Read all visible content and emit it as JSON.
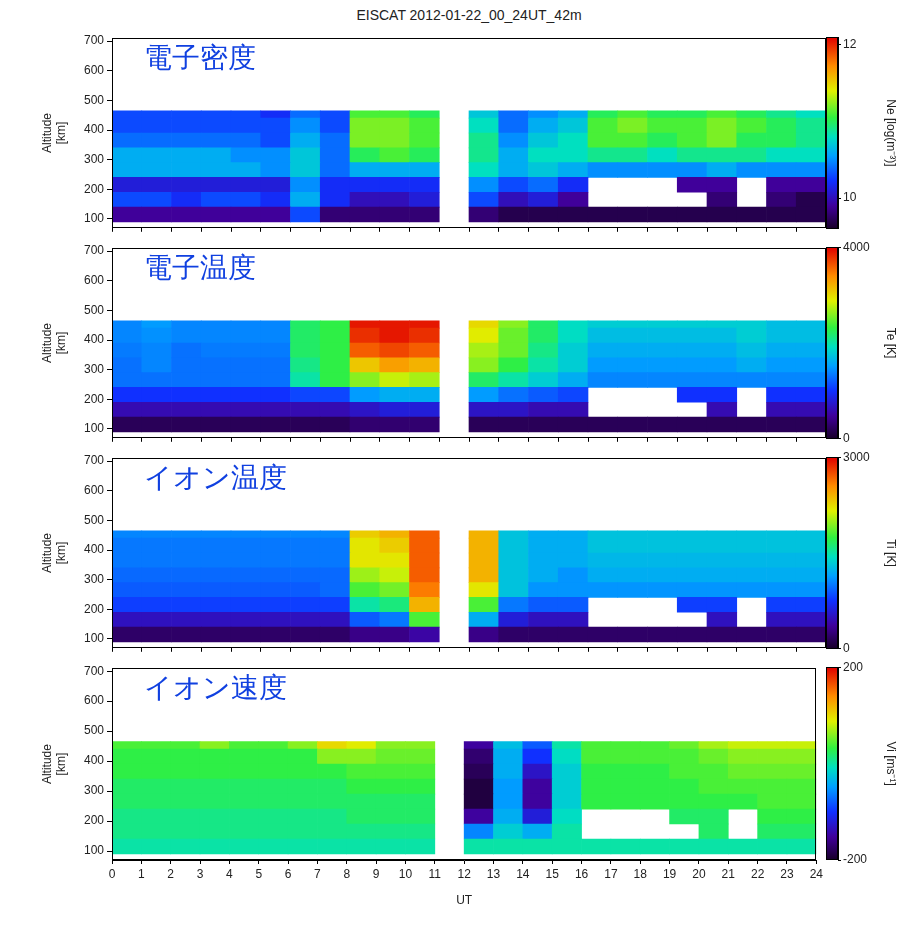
{
  "title": "EISCAT 2012-01-22_00_24UT_42m",
  "chart_data": [
    {
      "type": "heatmap",
      "annotation": "電子密度",
      "ylabel": "Altitude [km]",
      "xlim": [
        0,
        24
      ],
      "xticks": [
        0,
        1,
        2,
        3,
        4,
        5,
        6,
        7,
        8,
        9,
        10,
        11,
        12,
        13,
        14,
        15,
        16,
        17,
        18,
        19,
        20,
        21,
        22,
        23,
        24
      ],
      "ylim": [
        70,
        710
      ],
      "yticks": [
        100,
        200,
        300,
        400,
        500,
        600,
        700
      ],
      "tick_labels": "y",
      "x_bins": [
        0,
        1,
        2,
        3,
        4,
        5,
        6,
        7,
        8,
        9,
        10,
        11,
        12,
        13,
        14,
        15,
        16,
        17,
        18,
        19,
        20,
        21,
        22,
        23,
        24
      ],
      "y_bins": [
        90,
        140,
        190,
        240,
        290,
        340,
        390,
        440,
        465
      ],
      "cells": [
        [
          9.9,
          9.9,
          9.9,
          9.9,
          9.9,
          9.9,
          10.3,
          9.8,
          9.8,
          9.8,
          9.8,
          null,
          9.8,
          9.7,
          9.7,
          9.7,
          9.7,
          9.7,
          9.7,
          9.7,
          9.7,
          9.7,
          9.7,
          9.7
        ],
        [
          10.3,
          10.3,
          10.2,
          10.3,
          10.3,
          10.2,
          10.6,
          10.2,
          10.0,
          10.0,
          10.1,
          null,
          10.3,
          10.0,
          10.1,
          9.9,
          null,
          null,
          null,
          null,
          9.8,
          null,
          9.8,
          9.7
        ],
        [
          10.1,
          10.1,
          10.1,
          10.1,
          10.1,
          10.1,
          10.5,
          10.2,
          10.2,
          10.2,
          10.2,
          null,
          10.5,
          10.3,
          10.4,
          10.2,
          null,
          null,
          null,
          9.9,
          9.9,
          null,
          9.9,
          9.9
        ],
        [
          10.6,
          10.6,
          10.6,
          10.6,
          10.6,
          10.5,
          10.7,
          10.4,
          10.6,
          10.6,
          10.6,
          null,
          10.8,
          10.6,
          10.7,
          10.6,
          10.5,
          10.5,
          10.5,
          10.5,
          10.6,
          10.5,
          10.5,
          10.5
        ],
        [
          10.6,
          10.6,
          10.6,
          10.6,
          10.5,
          10.5,
          10.7,
          10.4,
          11.0,
          11.1,
          11.0,
          null,
          10.9,
          10.6,
          10.8,
          10.8,
          10.9,
          10.9,
          10.8,
          10.9,
          10.9,
          10.9,
          10.8,
          10.8
        ],
        [
          10.4,
          10.4,
          10.4,
          10.4,
          10.4,
          10.3,
          10.6,
          10.4,
          11.2,
          11.2,
          11.1,
          null,
          10.9,
          10.5,
          10.7,
          10.8,
          11.1,
          11.1,
          11.0,
          11.1,
          11.2,
          11.0,
          11.0,
          10.9
        ],
        [
          10.3,
          10.3,
          10.3,
          10.3,
          10.3,
          10.3,
          10.5,
          10.3,
          11.2,
          11.2,
          11.1,
          null,
          10.8,
          10.4,
          10.6,
          10.7,
          11.1,
          11.2,
          11.1,
          11.1,
          11.2,
          11.1,
          11.0,
          10.9
        ],
        [
          10.3,
          10.3,
          10.3,
          10.3,
          10.3,
          10.2,
          10.4,
          10.3,
          11.1,
          11.1,
          11.0,
          null,
          10.7,
          10.4,
          10.5,
          10.6,
          11.0,
          11.1,
          11.0,
          11.0,
          11.1,
          11.0,
          10.9,
          10.8
        ]
      ],
      "colorbar": {
        "label": "Ne [log(m⁻³)]",
        "range": [
          9.6,
          12.1
        ],
        "ticks": [
          10,
          12
        ]
      }
    },
    {
      "type": "heatmap",
      "annotation": "電子温度",
      "ylabel": "Altitude [km]",
      "xlim": [
        0,
        24
      ],
      "xticks": [
        0,
        1,
        2,
        3,
        4,
        5,
        6,
        7,
        8,
        9,
        10,
        11,
        12,
        13,
        14,
        15,
        16,
        17,
        18,
        19,
        20,
        21,
        22,
        23,
        24
      ],
      "ylim": [
        70,
        710
      ],
      "yticks": [
        100,
        200,
        300,
        400,
        500,
        600,
        700
      ],
      "tick_labels": "y",
      "x_bins": [
        0,
        1,
        2,
        3,
        4,
        5,
        6,
        7,
        8,
        9,
        10,
        11,
        12,
        13,
        14,
        15,
        16,
        17,
        18,
        19,
        20,
        21,
        22,
        23,
        24
      ],
      "y_bins": [
        90,
        140,
        190,
        240,
        290,
        340,
        390,
        440,
        465
      ],
      "cells": [
        [
          200,
          200,
          200,
          200,
          200,
          200,
          200,
          200,
          300,
          300,
          300,
          null,
          200,
          200,
          200,
          200,
          200,
          200,
          200,
          200,
          200,
          200,
          200,
          200
        ],
        [
          600,
          600,
          600,
          600,
          600,
          600,
          600,
          600,
          700,
          800,
          800,
          null,
          700,
          700,
          600,
          600,
          null,
          null,
          null,
          null,
          600,
          null,
          600,
          600
        ],
        [
          1000,
          1000,
          1000,
          1000,
          1000,
          1000,
          1100,
          1100,
          1500,
          1600,
          1600,
          null,
          1500,
          1300,
          1200,
          1100,
          null,
          null,
          null,
          1000,
          1000,
          null,
          1000,
          1000
        ],
        [
          1300,
          1300,
          1300,
          1300,
          1300,
          1300,
          2000,
          2300,
          2600,
          2800,
          2700,
          null,
          2200,
          2000,
          1800,
          1600,
          1400,
          1400,
          1400,
          1400,
          1400,
          1400,
          1400,
          1400
        ],
        [
          1300,
          1400,
          1300,
          1300,
          1300,
          1300,
          2100,
          2300,
          3100,
          3300,
          3200,
          null,
          2600,
          2300,
          2000,
          1800,
          1500,
          1500,
          1500,
          1500,
          1500,
          1600,
          1500,
          1500
        ],
        [
          1350,
          1400,
          1300,
          1350,
          1350,
          1350,
          2200,
          2300,
          3600,
          3700,
          3600,
          null,
          2700,
          2500,
          2100,
          1800,
          1600,
          1600,
          1600,
          1600,
          1600,
          1700,
          1600,
          1600
        ],
        [
          1400,
          1450,
          1400,
          1400,
          1400,
          1400,
          2200,
          2300,
          3800,
          3900,
          3800,
          null,
          2900,
          2500,
          2200,
          1900,
          1700,
          1700,
          1700,
          1700,
          1700,
          1800,
          1700,
          1700
        ],
        [
          1400,
          1500,
          1400,
          1400,
          1400,
          1400,
          2200,
          2300,
          3900,
          3900,
          3900,
          null,
          3000,
          2600,
          2200,
          1900,
          1800,
          1800,
          1800,
          1800,
          1800,
          1800,
          1700,
          1700
        ]
      ],
      "colorbar": {
        "label": "Te [K]",
        "range": [
          0,
          4000
        ],
        "ticks": [
          0,
          4000
        ]
      }
    },
    {
      "type": "heatmap",
      "annotation": "イオン温度",
      "ylabel": "Altitude [km]",
      "xlim": [
        0,
        24
      ],
      "xticks": [
        0,
        1,
        2,
        3,
        4,
        5,
        6,
        7,
        8,
        9,
        10,
        11,
        12,
        13,
        14,
        15,
        16,
        17,
        18,
        19,
        20,
        21,
        22,
        23,
        24
      ],
      "ylim": [
        70,
        710
      ],
      "yticks": [
        100,
        200,
        300,
        400,
        500,
        600,
        700
      ],
      "tick_labels": "y",
      "x_bins": [
        0,
        1,
        2,
        3,
        4,
        5,
        6,
        7,
        8,
        9,
        10,
        11,
        12,
        13,
        14,
        15,
        16,
        17,
        18,
        19,
        20,
        21,
        22,
        23,
        24
      ],
      "y_bins": [
        90,
        140,
        190,
        240,
        290,
        340,
        390,
        440,
        465
      ],
      "cells": [
        [
          200,
          200,
          200,
          200,
          200,
          200,
          200,
          200,
          300,
          300,
          400,
          null,
          300,
          200,
          200,
          200,
          200,
          200,
          200,
          200,
          200,
          200,
          200,
          200
        ],
        [
          500,
          500,
          500,
          500,
          500,
          500,
          500,
          500,
          900,
          1000,
          1800,
          null,
          1200,
          600,
          500,
          500,
          null,
          null,
          null,
          null,
          500,
          null,
          500,
          500
        ],
        [
          800,
          800,
          800,
          800,
          800,
          800,
          800,
          800,
          1500,
          1600,
          2400,
          null,
          1800,
          1000,
          900,
          900,
          null,
          null,
          null,
          800,
          800,
          null,
          800,
          800
        ],
        [
          900,
          900,
          900,
          900,
          900,
          900,
          900,
          950,
          1800,
          1900,
          2600,
          null,
          2200,
          1300,
          1100,
          1100,
          1100,
          1100,
          1100,
          1100,
          1100,
          1100,
          1100,
          1100
        ],
        [
          950,
          950,
          950,
          950,
          950,
          950,
          950,
          950,
          2000,
          2100,
          2700,
          null,
          2400,
          1300,
          1200,
          1100,
          1200,
          1200,
          1200,
          1200,
          1200,
          1200,
          1200,
          1200
        ],
        [
          1000,
          1000,
          1000,
          1000,
          1000,
          1000,
          1000,
          1000,
          2200,
          2200,
          2700,
          null,
          2400,
          1300,
          1200,
          1200,
          1250,
          1250,
          1250,
          1250,
          1250,
          1250,
          1250,
          1250
        ],
        [
          1000,
          1000,
          1000,
          1000,
          1000,
          1000,
          1000,
          1000,
          2200,
          2300,
          2700,
          null,
          2400,
          1300,
          1200,
          1200,
          1300,
          1300,
          1300,
          1300,
          1300,
          1300,
          1300,
          1300
        ],
        [
          1050,
          1050,
          1050,
          1050,
          1050,
          1050,
          1050,
          1050,
          2300,
          2400,
          2700,
          null,
          2400,
          1300,
          1200,
          1200,
          1300,
          1300,
          1300,
          1300,
          1300,
          1300,
          1300,
          1300
        ]
      ],
      "colorbar": {
        "label": "Ti [K]",
        "range": [
          0,
          3000
        ],
        "ticks": [
          0,
          3000
        ]
      }
    },
    {
      "type": "heatmap",
      "annotation": "イオン速度",
      "ylabel": "Altitude [km]",
      "xlabel": "UT",
      "xlim": [
        0,
        24
      ],
      "xticks": [
        0,
        1,
        2,
        3,
        4,
        5,
        6,
        7,
        8,
        9,
        10,
        11,
        12,
        13,
        14,
        15,
        16,
        17,
        18,
        19,
        20,
        21,
        22,
        23,
        24
      ],
      "ylim": [
        70,
        710
      ],
      "yticks": [
        100,
        200,
        300,
        400,
        500,
        600,
        700
      ],
      "x_bins": [
        0,
        1,
        2,
        3,
        4,
        5,
        6,
        7,
        8,
        9,
        10,
        11,
        12,
        13,
        14,
        15,
        16,
        17,
        18,
        19,
        20,
        21,
        22,
        23,
        24
      ],
      "y_bins": [
        90,
        140,
        190,
        240,
        290,
        340,
        390,
        440,
        465
      ],
      "cells": [
        [
          0,
          0,
          0,
          0,
          0,
          0,
          0,
          0,
          0,
          0,
          0,
          null,
          0,
          0,
          0,
          0,
          0,
          0,
          0,
          0,
          0,
          0,
          0,
          0
        ],
        [
          10,
          10,
          10,
          10,
          10,
          10,
          10,
          10,
          10,
          10,
          10,
          null,
          -60,
          -20,
          -40,
          0,
          null,
          null,
          null,
          null,
          20,
          null,
          20,
          20
        ],
        [
          10,
          10,
          10,
          10,
          10,
          10,
          10,
          10,
          20,
          20,
          20,
          null,
          -150,
          -40,
          -120,
          -10,
          null,
          null,
          null,
          20,
          20,
          null,
          30,
          30
        ],
        [
          20,
          20,
          20,
          20,
          20,
          20,
          20,
          20,
          20,
          20,
          20,
          null,
          -190,
          -50,
          -150,
          -20,
          30,
          30,
          30,
          30,
          30,
          30,
          40,
          40
        ],
        [
          20,
          20,
          20,
          20,
          20,
          20,
          20,
          20,
          30,
          30,
          30,
          null,
          -190,
          -50,
          -150,
          -20,
          30,
          30,
          30,
          30,
          40,
          40,
          40,
          40
        ],
        [
          30,
          30,
          30,
          30,
          30,
          30,
          30,
          30,
          40,
          40,
          40,
          null,
          -180,
          -40,
          -130,
          -20,
          30,
          30,
          30,
          40,
          40,
          50,
          50,
          50
        ],
        [
          30,
          30,
          30,
          30,
          30,
          30,
          30,
          60,
          60,
          50,
          50,
          null,
          -170,
          -40,
          -100,
          -10,
          40,
          40,
          40,
          40,
          50,
          60,
          60,
          60
        ],
        [
          40,
          40,
          40,
          60,
          40,
          40,
          60,
          100,
          90,
          60,
          60,
          null,
          -150,
          -30,
          -80,
          0,
          40,
          40,
          40,
          50,
          70,
          80,
          80,
          80
        ]
      ],
      "colorbar": {
        "label": "Vi [ms⁻¹]",
        "range": [
          -200,
          200
        ],
        "ticks": [
          -200,
          200
        ]
      }
    }
  ]
}
